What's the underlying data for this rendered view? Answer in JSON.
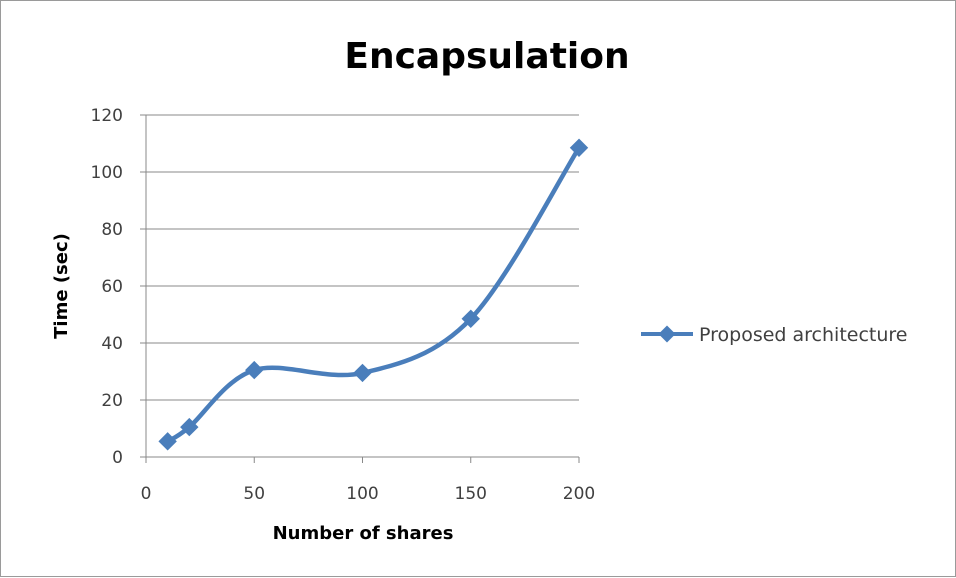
{
  "chart_data": {
    "type": "line",
    "title": "Encapsulation",
    "xlabel": "Number of shares",
    "ylabel": "Time (sec)",
    "xlim": [
      0,
      200
    ],
    "ylim": [
      0,
      120
    ],
    "xticks": [
      0,
      50,
      100,
      150,
      200
    ],
    "yticks": [
      0,
      20,
      40,
      60,
      80,
      100,
      120
    ],
    "grid": "horizontal",
    "smooth": true,
    "legend": "right",
    "series": [
      {
        "name": "Proposed architecture",
        "color": "#4a7ebb",
        "marker": "diamond",
        "x": [
          10,
          20,
          50,
          100,
          150,
          200
        ],
        "y": [
          5.5,
          10.5,
          30.5,
          29.5,
          48.5,
          108.5
        ]
      }
    ]
  }
}
